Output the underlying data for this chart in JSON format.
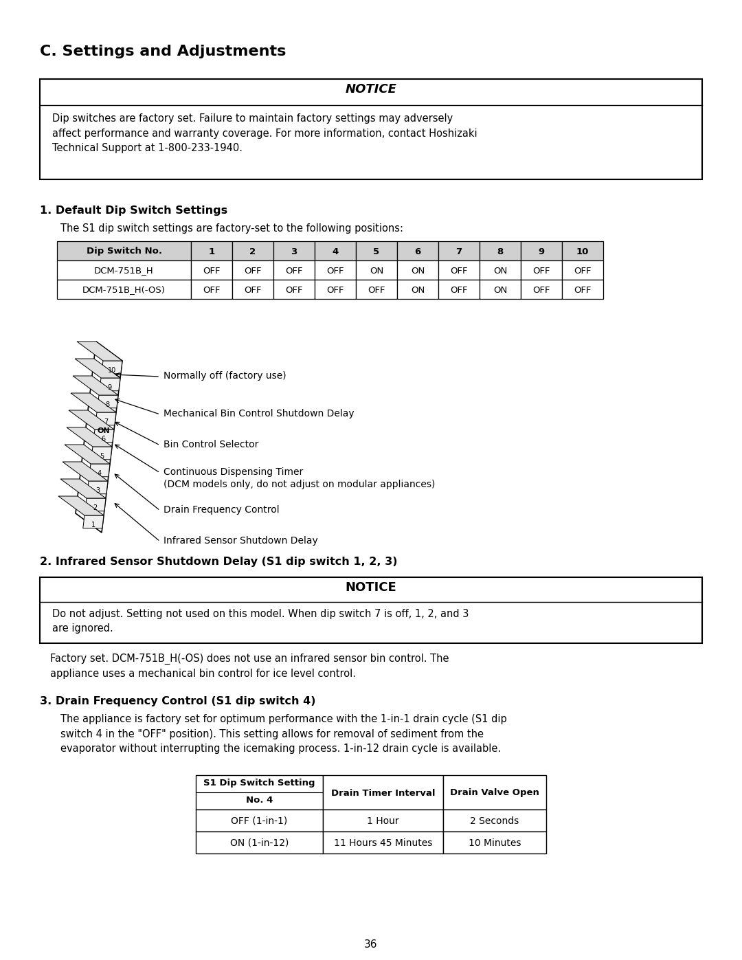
{
  "page_title": "C. Settings and Adjustments",
  "notice1_title": "NOTICE",
  "notice1_text": "Dip switches are factory set. Failure to maintain factory settings may adversely\naffect performance and warranty coverage. For more information, contact Hoshizaki\nTechnical Support at 1-800-233-1940.",
  "section1_title": "1. Default Dip Switch Settings",
  "section1_intro": "The S1 dip switch settings are factory-set to the following positions:",
  "table1_headers": [
    "Dip Switch No.",
    "1",
    "2",
    "3",
    "4",
    "5",
    "6",
    "7",
    "8",
    "9",
    "10"
  ],
  "table1_row1": [
    "DCM-751B_H",
    "OFF",
    "OFF",
    "OFF",
    "OFF",
    "ON",
    "ON",
    "OFF",
    "ON",
    "OFF",
    "OFF"
  ],
  "table1_row2": [
    "DCM-751B_H(-OS)",
    "OFF",
    "OFF",
    "OFF",
    "OFF",
    "OFF",
    "ON",
    "OFF",
    "ON",
    "OFF",
    "OFF"
  ],
  "diagram_labels": [
    "Normally off (factory use)",
    "Mechanical Bin Control Shutdown Delay",
    "Bin Control Selector",
    "Continuous Dispensing Timer\n(DCM models only, do not adjust on modular appliances)",
    "Drain Frequency Control",
    "Infrared Sensor Shutdown Delay"
  ],
  "section2_title": "2. Infrared Sensor Shutdown Delay (S1 dip switch 1, 2, 3)",
  "notice2_title": "NOTICE",
  "notice2_text": "Do not adjust. Setting not used on this model. When dip switch 7 is off, 1, 2, and 3\nare ignored.",
  "section2_text": "Factory set. DCM-751B_H(-OS) does not use an infrared sensor bin control. The\nappliance uses a mechanical bin control for ice level control.",
  "section3_title": "3. Drain Frequency Control (S1 dip switch 4)",
  "section3_text": "The appliance is factory set for optimum performance with the 1-in-1 drain cycle (S1 dip\nswitch 4 in the \"OFF\" position). This setting allows for removal of sediment from the\nevaporator without interrupting the icemaking process. 1-in-12 drain cycle is available.",
  "table2_col1_header_top": "S1 Dip Switch Setting",
  "table2_col1_header_bot": "No. 4",
  "table2_col2_header": "Drain Timer Interval",
  "table2_col3_header": "Drain Valve Open",
  "table2_rows": [
    [
      "OFF (1-in-1)",
      "1 Hour",
      "2 Seconds"
    ],
    [
      "ON (1-in-12)",
      "11 Hours 45 Minutes",
      "10 Minutes"
    ]
  ],
  "page_number": "36",
  "bg_color": "#ffffff",
  "text_color": "#000000"
}
